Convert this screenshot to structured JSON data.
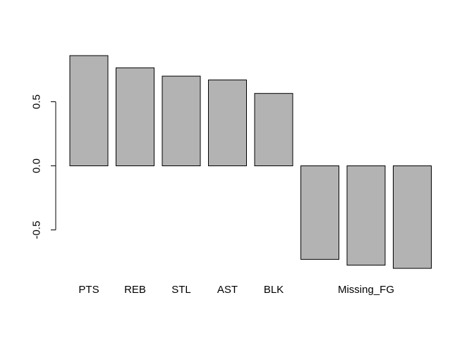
{
  "chart_data": {
    "type": "bar",
    "categories": [
      "PTS",
      "REB",
      "STL",
      "AST",
      "BLK",
      "",
      "Missing_FG",
      ""
    ],
    "values": [
      0.86,
      0.765,
      0.7,
      0.67,
      0.565,
      -0.73,
      -0.775,
      -0.8
    ],
    "title": "",
    "xlabel": "",
    "ylabel": "",
    "yticks": [
      -0.5,
      0.0,
      0.5
    ],
    "ytick_labels": [
      "-0.5",
      "0.0",
      "0.5"
    ],
    "ylim": [
      -0.8,
      0.86
    ],
    "grid": false,
    "legend": "none",
    "bar_color": "#b3b3b3",
    "bar_edge_color": "#000000"
  }
}
